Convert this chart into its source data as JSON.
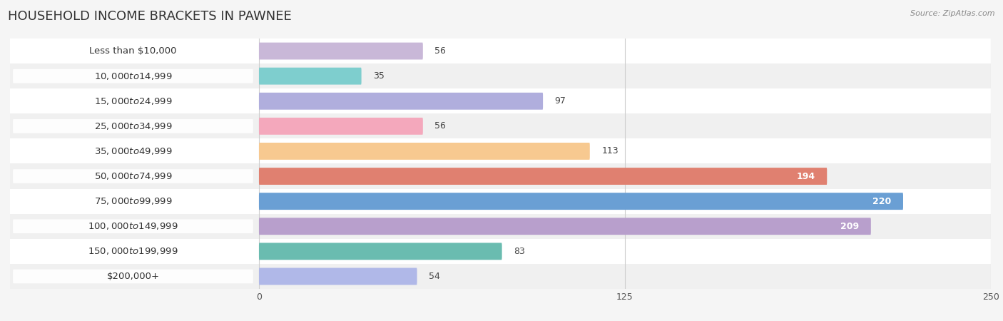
{
  "title": "HOUSEHOLD INCOME BRACKETS IN PAWNEE",
  "source": "Source: ZipAtlas.com",
  "categories": [
    "Less than $10,000",
    "$10,000 to $14,999",
    "$15,000 to $24,999",
    "$25,000 to $34,999",
    "$35,000 to $49,999",
    "$50,000 to $74,999",
    "$75,000 to $99,999",
    "$100,000 to $149,999",
    "$150,000 to $199,999",
    "$200,000+"
  ],
  "values": [
    56,
    35,
    97,
    56,
    113,
    194,
    220,
    209,
    83,
    54
  ],
  "bar_colors": [
    "#c9b8d8",
    "#7ecece",
    "#b0aedd",
    "#f4a8bc",
    "#f7c990",
    "#e08070",
    "#6a9fd4",
    "#b89fcc",
    "#6abcb0",
    "#b0b8e8"
  ],
  "xlim": [
    -85,
    250
  ],
  "data_xlim": [
    0,
    250
  ],
  "xticks": [
    0,
    125,
    250
  ],
  "label_color_threshold": 150,
  "bar_height": 0.68,
  "background_color": "#f5f5f5",
  "row_bg_colors": [
    "#ffffff",
    "#f0f0f0"
  ],
  "title_fontsize": 13,
  "label_fontsize": 9.5,
  "value_fontsize": 9
}
